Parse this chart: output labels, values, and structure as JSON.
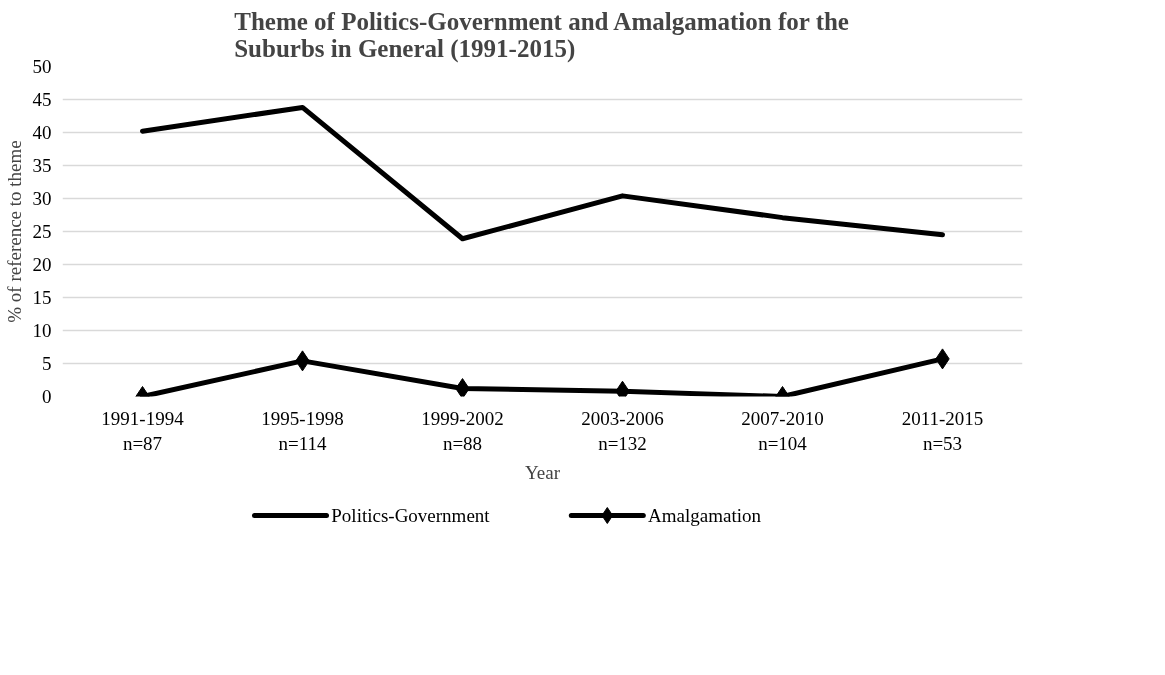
{
  "chart_data": {
    "type": "line",
    "title": "Theme of Politics-Government and Amalgamation for the\nSuburbs in General (1991-2015)",
    "xlabel": "Year",
    "ylabel": "% of reference to theme",
    "categories": [
      "1991-1994\nn=87",
      "1995-1998\nn=114",
      "1999-2002\nn=88",
      "2003-2006\nn=132",
      "2007-2010\nn=104",
      "2011-2015\nn=53"
    ],
    "series": [
      {
        "name": "Politics-Government",
        "color": "#000000",
        "marker": "none",
        "values": [
          40.2,
          43.8,
          23.9,
          30.4,
          27.1,
          24.5
        ]
      },
      {
        "name": "Amalgamation",
        "color": "#000000",
        "marker": "diamond",
        "values": [
          0,
          5.4,
          1.2,
          0.8,
          0,
          5.7
        ]
      }
    ],
    "ylim": [
      0,
      50
    ],
    "yticks": [
      0,
      5,
      10,
      15,
      20,
      25,
      30,
      35,
      40,
      45,
      50
    ],
    "grid": "y",
    "legend": "bottom"
  }
}
